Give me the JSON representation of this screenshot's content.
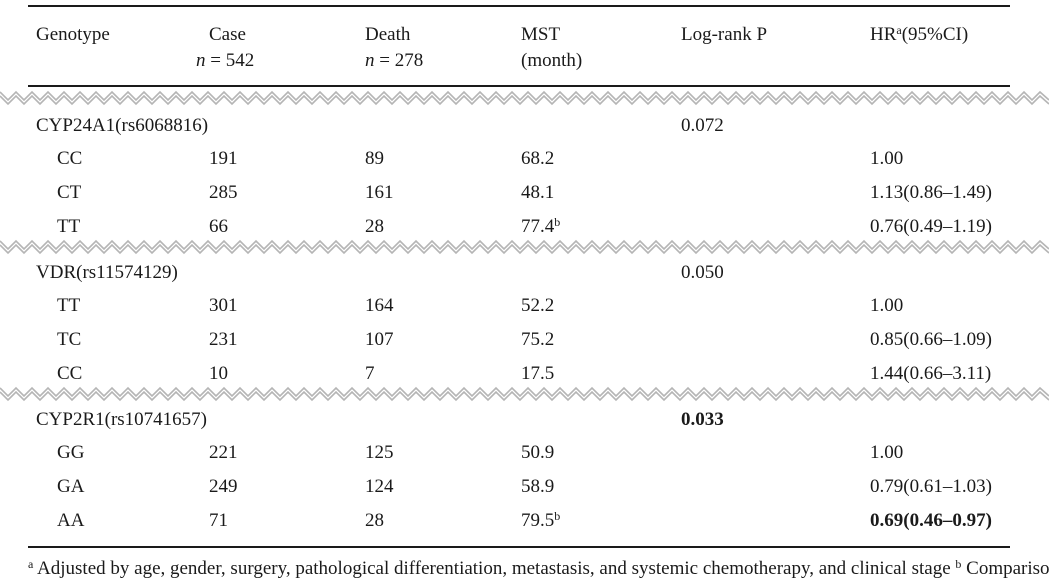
{
  "header": {
    "genotype": "Genotype",
    "case": "Case",
    "case_n_var": "n",
    "case_n": " = 542",
    "death": "Death",
    "death_n_var": "n",
    "death_n": " = 278",
    "mst": "MST",
    "mst_unit": "(month)",
    "logrank": "Log-rank P",
    "hr": "HR",
    "hr_sup": "a",
    "hr_ci": "(95%CI)"
  },
  "groups": [
    {
      "gene": "CYP24A1(rs6068816)",
      "p": "0.072",
      "rows": [
        {
          "genotype": "CC",
          "case": "191",
          "death": "89",
          "mst": "68.2",
          "mst_sup": "",
          "hr": "1.00"
        },
        {
          "genotype": "CT",
          "case": "285",
          "death": "161",
          "mst": "48.1",
          "mst_sup": "",
          "hr": "1.13(0.86–1.49)"
        },
        {
          "genotype": "TT",
          "case": "66",
          "death": "28",
          "mst": "77.4",
          "mst_sup": "b",
          "hr": "0.76(0.49–1.19)"
        }
      ]
    },
    {
      "gene": "VDR(rs11574129)",
      "p": "0.050",
      "rows": [
        {
          "genotype": "TT",
          "case": "301",
          "death": "164",
          "mst": "52.2",
          "mst_sup": "",
          "hr": "1.00"
        },
        {
          "genotype": "TC",
          "case": "231",
          "death": "107",
          "mst": "75.2",
          "mst_sup": "",
          "hr": "0.85(0.66–1.09)"
        },
        {
          "genotype": "CC",
          "case": "10",
          "death": "7",
          "mst": "17.5",
          "mst_sup": "",
          "hr": "1.44(0.66–3.11)"
        }
      ]
    },
    {
      "gene": "CYP2R1(rs10741657)",
      "p": "0.033",
      "rows": [
        {
          "genotype": "GG",
          "case": "221",
          "death": "125",
          "mst": "50.9",
          "mst_sup": "",
          "hr": "1.00"
        },
        {
          "genotype": "GA",
          "case": "249",
          "death": "124",
          "mst": "58.9",
          "mst_sup": "",
          "hr": "0.79(0.61–1.03)"
        },
        {
          "genotype": "AA",
          "case": "71",
          "death": "28",
          "mst": "79.5",
          "mst_sup": "b",
          "hr": "0.69(0.46–0.97)"
        }
      ]
    }
  ],
  "footnote": {
    "sup_a": "a",
    "text": " Adjusted by age, gender, surgery, pathological differentiation, metastasis, and systemic chemotherapy, and clinical stage  ",
    "sup_b": "b",
    "text2": " Comparison with"
  }
}
